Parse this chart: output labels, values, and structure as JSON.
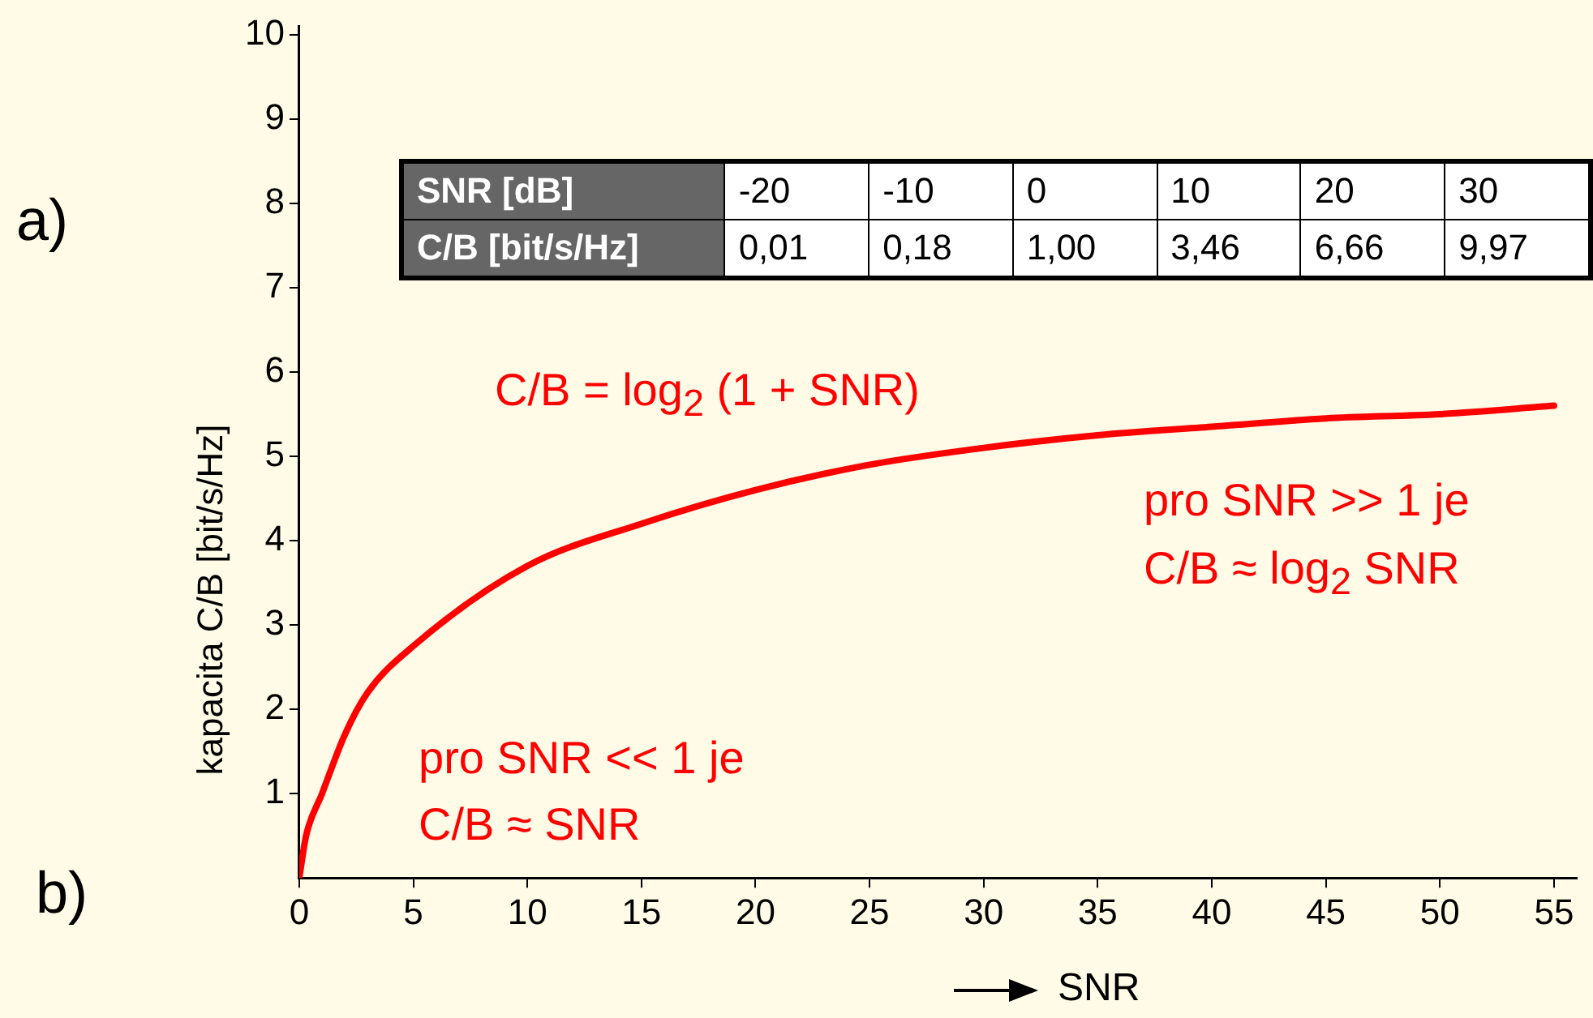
{
  "chart_data": {
    "type": "line",
    "xlabel": "SNR",
    "ylabel": "kapacita C/B [bit/s/Hz]",
    "x": [
      0,
      0.3,
      1,
      2,
      3,
      5,
      10,
      15,
      20,
      25,
      30,
      35,
      40,
      45,
      50,
      55
    ],
    "series": [
      {
        "color": "#ff0000",
        "values": [
          0,
          0.5,
          1.0,
          1.7,
          2.2,
          2.75,
          3.7,
          4.2,
          4.6,
          4.9,
          5.1,
          5.25,
          5.35,
          5.45,
          5.5,
          5.6
        ]
      }
    ],
    "xlim": [
      0,
      56
    ],
    "xticks": [
      0,
      5,
      10,
      15,
      20,
      25,
      30,
      35,
      40,
      45,
      50,
      55
    ],
    "ylim": [
      0,
      10.1
    ],
    "yticks": [
      1,
      2,
      3,
      4,
      5,
      6,
      7,
      8,
      9,
      10
    ],
    "grid": false,
    "legend": false,
    "marker": "none",
    "line_style": "solid",
    "annotations": [
      "a)",
      "b)",
      "C/B = log$_{2}$ (1 + SNR)",
      "pro SNR >> 1 je",
      "C/B ≈ log$_{2}$ SNR",
      "pro SNR << 1 je",
      "C/B ≈ SNR",
      "SNR [dB]",
      "-20",
      "-10",
      "0",
      "10",
      "20",
      "30",
      "C/B [bit/s/Hz]",
      "0,01",
      "0,18",
      "1,00",
      "3,46",
      "6,66",
      "9,97"
    ]
  }
}
